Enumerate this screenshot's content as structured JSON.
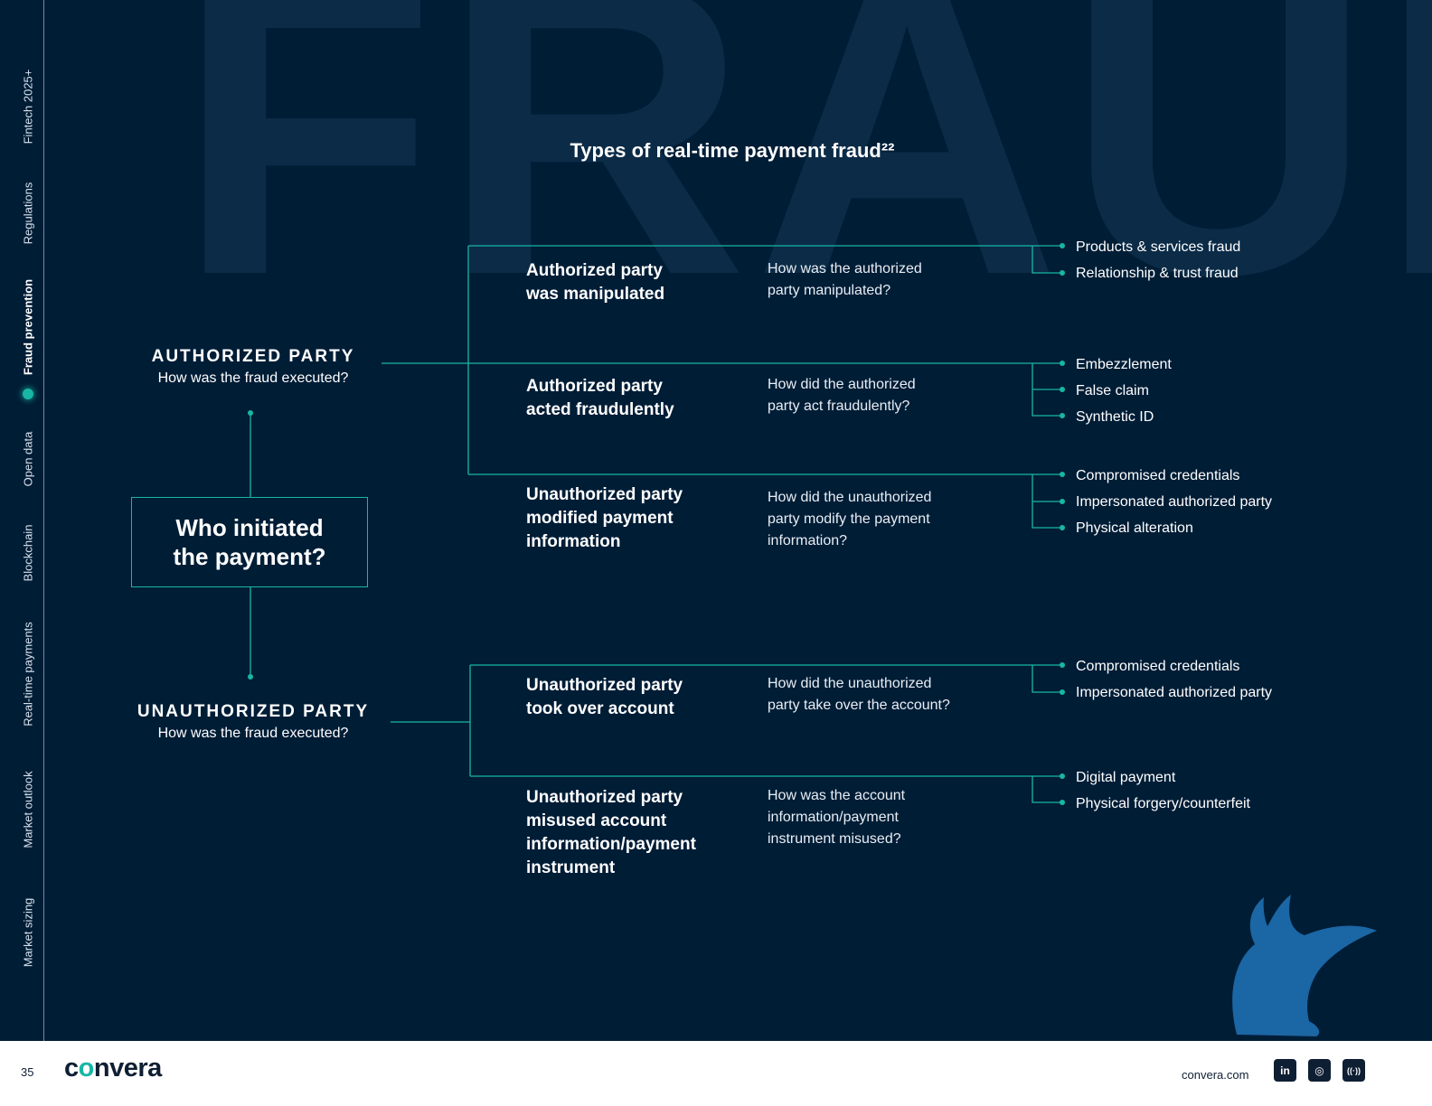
{
  "title": "Types of real-time payment fraud²²",
  "watermark": "FRAUD",
  "sidebar": {
    "items": [
      {
        "label": "Fintech 2025+"
      },
      {
        "label": "Regulations"
      },
      {
        "label": "Fraud prevention"
      },
      {
        "label": "Open data"
      },
      {
        "label": "Blockchain"
      },
      {
        "label": "Real-time payments"
      },
      {
        "label": "Market outlook"
      },
      {
        "label": "Market sizing"
      }
    ],
    "active": "Fraud prevention"
  },
  "center": {
    "line1": "Who initiated",
    "line2": "the payment?"
  },
  "authorized": {
    "name": "AUTHORIZED PARTY",
    "question": "How was the fraud executed?"
  },
  "unauthorized": {
    "name": "UNAUTHORIZED PARTY",
    "question": "How was the fraud executed?"
  },
  "branches": [
    {
      "category": [
        "Authorized party",
        "was manipulated"
      ],
      "question": [
        "How was the authorized",
        "party manipulated?"
      ],
      "leaves": [
        "Products & services fraud",
        "Relationship & trust fraud"
      ]
    },
    {
      "category": [
        "Authorized party",
        "acted fraudulently"
      ],
      "question": [
        "How did the authorized",
        "party act fraudulently?"
      ],
      "leaves": [
        "Embezzlement",
        "False claim",
        "Synthetic ID"
      ]
    },
    {
      "category": [
        "Unauthorized party",
        "modified payment",
        "information"
      ],
      "question": [
        "How did the unauthorized",
        "party modify the payment",
        "information?"
      ],
      "leaves": [
        "Compromised credentials",
        "Impersonated authorized party",
        "Physical alteration"
      ]
    },
    {
      "category": [
        "Unauthorized party",
        "took over account"
      ],
      "question": [
        "How did the unauthorized",
        "party take over the account?"
      ],
      "leaves": [
        "Compromised credentials",
        "Impersonated authorized party"
      ]
    },
    {
      "category": [
        "Unauthorized party",
        "misused account",
        "information/payment",
        "instrument"
      ],
      "question": [
        "How was the account",
        "information/payment",
        "instrument misused?"
      ],
      "leaves": [
        "Digital payment",
        "Physical forgery/counterfeit"
      ]
    }
  ],
  "footer": {
    "page_number": "35",
    "logo": {
      "pre": "c",
      "accent": "o",
      "post": "nvera"
    },
    "site": "convera.com",
    "social": [
      {
        "icon": "linkedin-icon",
        "glyph": "in"
      },
      {
        "icon": "instagram-icon",
        "glyph": "◎"
      },
      {
        "icon": "podcast-icon",
        "glyph": "((·))"
      }
    ]
  },
  "colors": {
    "background": "#001d36",
    "accent": "#18b6a5",
    "watermark": "#0b2b47",
    "footer": "#ffffff"
  }
}
